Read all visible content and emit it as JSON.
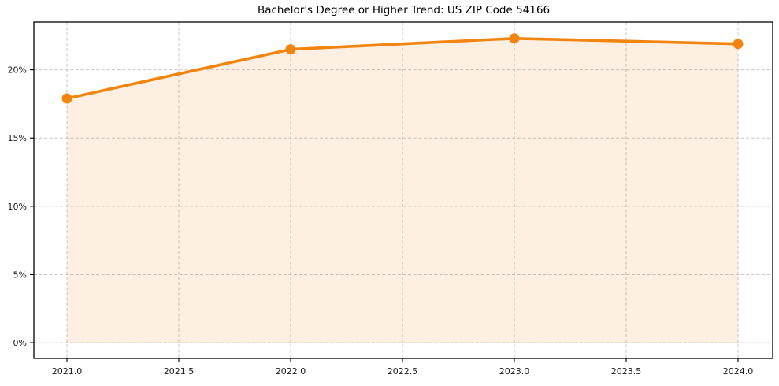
{
  "figure": {
    "title": "Bachelor's Degree or Higher Trend: US ZIP Code 54166"
  },
  "chart_data": {
    "type": "area",
    "title": "Bachelor's Degree or Higher Trend: US ZIP Code 54166",
    "xlabel": "",
    "ylabel": "",
    "x": [
      2021,
      2022,
      2023,
      2024
    ],
    "values": [
      17.9,
      21.5,
      22.3,
      21.9
    ],
    "value_unit": "%",
    "xlim": [
      2020.852,
      2024.155
    ],
    "ylim": [
      -1.15,
      23.5
    ],
    "xticks": [
      2021.0,
      2021.5,
      2022.0,
      2022.5,
      2023.0,
      2023.5,
      2024.0
    ],
    "xtick_labels": [
      "2021.0",
      "2021.5",
      "2022.0",
      "2022.5",
      "2023.0",
      "2023.5",
      "2024.0"
    ],
    "yticks": [
      0,
      5,
      10,
      15,
      20
    ],
    "ytick_labels": [
      "0%",
      "5%",
      "10%",
      "15%",
      "20%"
    ],
    "grid": true,
    "legend": "none",
    "fill_to_baseline": 0,
    "line_color": "#F2850F",
    "marker_color": "#F2850F",
    "fill_color": "#F2850F",
    "fill_opacity": 0.12,
    "grid_color": "#c6c6c6",
    "spine_color": "#000000",
    "line_width": 3.6,
    "marker_radius": 6.5
  }
}
